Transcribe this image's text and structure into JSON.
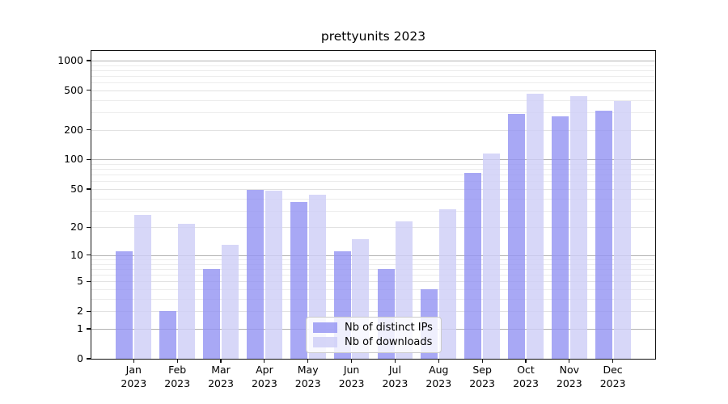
{
  "title": "prettyunits 2023",
  "legend": {
    "items": [
      {
        "label": "Nb of distinct IPs",
        "color": "#9292f2",
        "opacity": 0.8
      },
      {
        "label": "Nb of downloads",
        "color": "#cecef6",
        "opacity": 0.82
      }
    ]
  },
  "y_axis": {
    "tick_labels": [
      "0",
      "1",
      "2",
      "5",
      "10",
      "20",
      "50",
      "100",
      "200",
      "500",
      "1000"
    ]
  },
  "x_axis": {
    "tick_labels": [
      "Jan\n2023",
      "Feb\n2023",
      "Mar\n2023",
      "Apr\n2023",
      "May\n2023",
      "Jun\n2023",
      "Jul\n2023",
      "Aug\n2023",
      "Sep\n2023",
      "Oct\n2023",
      "Nov\n2023",
      "Dec\n2023"
    ]
  },
  "chart_data": {
    "type": "bar",
    "title": "prettyunits 2023",
    "categories": [
      "Jan 2023",
      "Feb 2023",
      "Mar 2023",
      "Apr 2023",
      "May 2023",
      "Jun 2023",
      "Jul 2023",
      "Aug 2023",
      "Sep 2023",
      "Oct 2023",
      "Nov 2023",
      "Dec 2023"
    ],
    "series": [
      {
        "name": "Nb of distinct IPs",
        "color": "#9292f2",
        "opacity": 0.8,
        "values": [
          11,
          2,
          7,
          49,
          37,
          11,
          7,
          4,
          73,
          290,
          275,
          310
        ]
      },
      {
        "name": "Nb of downloads",
        "color": "#cecef6",
        "opacity": 0.82,
        "values": [
          27,
          22,
          13,
          48,
          44,
          15,
          23,
          31,
          115,
          460,
          440,
          395
        ]
      }
    ],
    "xlabel": "",
    "ylabel": "",
    "y_scale": "log10(1+x)",
    "ylim": [
      0,
      1250
    ],
    "y_ticks": [
      0,
      1,
      2,
      5,
      10,
      20,
      50,
      100,
      200,
      500,
      1000
    ],
    "y_minor_ticks": [
      3,
      4,
      6,
      7,
      8,
      9,
      30,
      40,
      60,
      70,
      80,
      90,
      300,
      400,
      600,
      700,
      800,
      900
    ],
    "y_decade_ticks": [
      1,
      10,
      100,
      1000
    ],
    "grid": true,
    "legend_position": "lower center"
  }
}
